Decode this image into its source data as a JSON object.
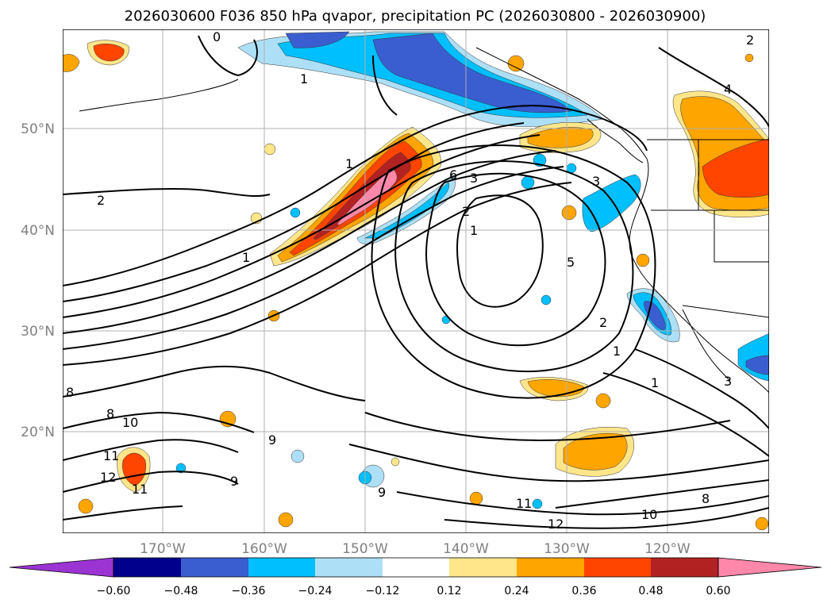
{
  "title": "2026030600 F036 850 hPa qvapor, precipitation PC (2026030800 - 2026030900)",
  "map": {
    "lat_labels": [
      "50°N",
      "40°N",
      "30°N",
      "20°N"
    ],
    "lon_labels": [
      "170°W",
      "160°W",
      "150°W",
      "140°W",
      "130°W",
      "120°W"
    ],
    "contour_labels": [
      "0",
      "1",
      "2",
      "1",
      "1",
      "6",
      "3",
      "2",
      "1",
      "5",
      "2",
      "1",
      "8",
      "8",
      "10",
      "11",
      "12",
      "11",
      "9",
      "9",
      "9",
      "11",
      "12",
      "10",
      "8",
      "1",
      "3",
      "4",
      "3",
      "2"
    ]
  },
  "colorbar": {
    "tick_labels": [
      "−0.60",
      "−0.48",
      "−0.36",
      "−0.24",
      "−0.12",
      "0.12",
      "0.24",
      "0.36",
      "0.48",
      "0.60"
    ],
    "colors": [
      "#9b34d3",
      "#00008c",
      "#3a5ed0",
      "#00bfff",
      "#ade0f6",
      "#ffffff",
      "#ffe68a",
      "#ffa500",
      "#ff4500",
      "#b22222",
      "#ff88aa",
      "#ff88aa"
    ]
  },
  "shading_colors": {
    "neg_light": "#ade0f6",
    "neg_mid": "#00bfff",
    "neg_strong": "#3a5ed0",
    "pos_light": "#ffe68a",
    "pos_mid": "#ffa500",
    "pos_strong": "#ff4500",
    "pos_very": "#b22222",
    "pos_max": "#ff88aa"
  }
}
